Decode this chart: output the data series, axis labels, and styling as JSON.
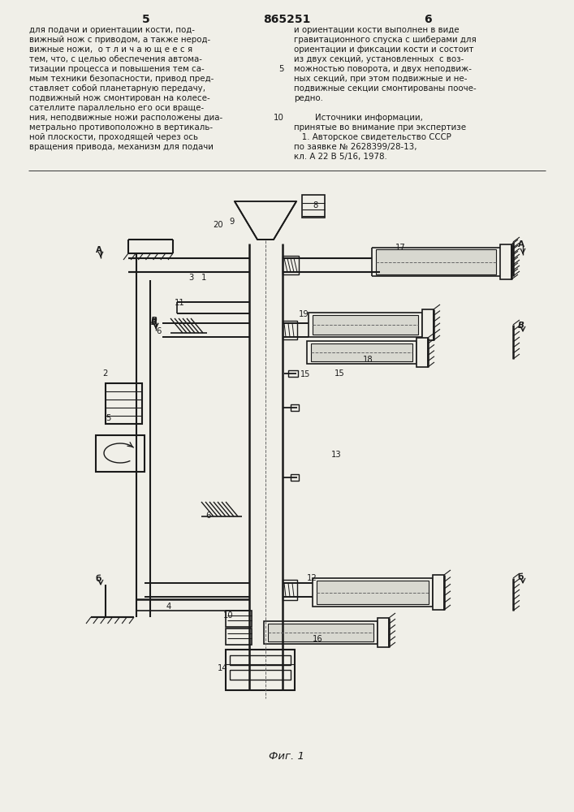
{
  "bg_color": "#f0efe8",
  "line_color": "#1a1a1a",
  "text_color": "#1a1a1a",
  "page_number_left": "5",
  "page_number_center": "865251",
  "page_number_right": "6",
  "left_column_text": [
    "для подачи и ориентации кости, под-",
    "вижный нож с приводом, а также неpод-",
    "вижные ножи,  о т л и ч а ю щ е е с я",
    "тем, что, с целью обеспечения автома-",
    "тизации процесса и повышения тем са-",
    "мым техники безопасности, привод пред-",
    "ставляет собой планетарную передачу,",
    "подвижный нож смонтирован на колесе-",
    "сателлите параллельно его оси враще-",
    "ния, неподвижные ножи расположены диа-",
    "метрально противоположно в вертикаль-",
    "ной плоскости, проходящей через ось",
    "вращения привода, механизм для подачи"
  ],
  "right_column_text": [
    "и ориентации кости выполнен в виде",
    "гравитационного спуска с шиберами для",
    "ориентации и фиксации кости и состоит",
    "из двух секций, установленных  с воз-",
    "можностью поворота, и двух неподвиж-",
    "ных секций, при этом подвижные и не-",
    "подвижные секции смонтированы пооче-",
    "редно.",
    "",
    "        Источники информации,",
    "принятые во внимание при экспертизе",
    "   1. Авторское свидетельство СССР",
    "по заявке № 2628399/28-13,",
    "кл. А 22 В 5/16, 1978."
  ],
  "fig_caption": "Фиг. 1",
  "line_number_5": "5",
  "line_number_10": "10"
}
